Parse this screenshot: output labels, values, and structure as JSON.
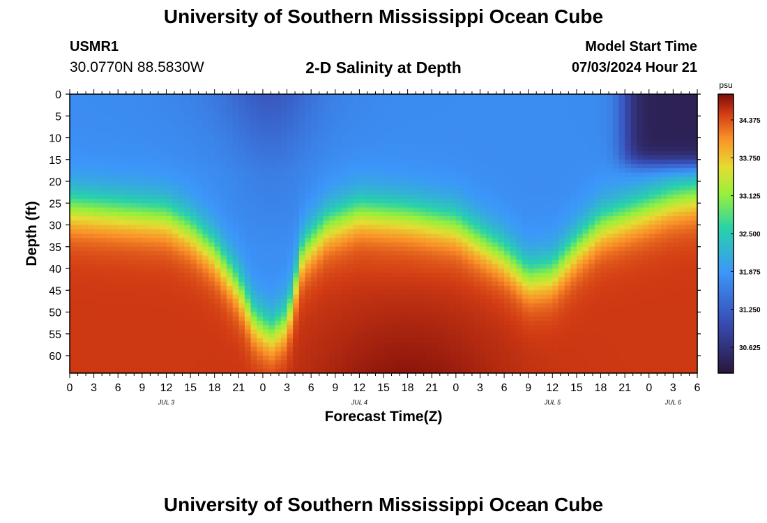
{
  "header": {
    "title": "University of Southern Mississippi Ocean Cube",
    "station_id": "USMR1",
    "coords": "30.0770N  88.5830W",
    "subtitle": "2-D Salinity at Depth",
    "model_label": "Model Start Time",
    "model_value": "07/03/2024 Hour 21"
  },
  "footer": {
    "title": "University of Southern Mississippi Ocean Cube"
  },
  "chart_data": {
    "type": "heatmap",
    "title": "2-D Salinity at Depth",
    "xlabel": "Forecast Time(Z)",
    "ylabel": "Depth (ft)",
    "x_hours_range": [
      0,
      78
    ],
    "x_tick_step_hours": 3,
    "x_tick_labels": [
      "0",
      "3",
      "6",
      "9",
      "12",
      "15",
      "18",
      "21",
      "0",
      "3",
      "6",
      "9",
      "12",
      "15",
      "18",
      "21",
      "0",
      "3",
      "6",
      "9",
      "12",
      "15",
      "18",
      "21",
      "0",
      "3",
      "6"
    ],
    "date_labels": [
      {
        "label": "JUL 3",
        "hour": 12
      },
      {
        "label": "JUL 4",
        "hour": 36
      },
      {
        "label": "JUL 5",
        "hour": 60
      },
      {
        "label": "JUL 6",
        "hour": 75
      }
    ],
    "y_range": [
      0,
      64
    ],
    "y_ticks": [
      0,
      5,
      10,
      15,
      20,
      25,
      30,
      35,
      40,
      45,
      50,
      55,
      60
    ],
    "colorbar": {
      "unit": "psu",
      "min": 30.2,
      "max": 34.8,
      "ticks": [
        "34.375",
        "33.750",
        "33.125",
        "32.500",
        "31.875",
        "31.250",
        "30.625"
      ]
    },
    "upper_layer_salinity": 31.75,
    "lower_layer_salinity": 34.5,
    "halocline_depth_ft": [
      {
        "hour": 0,
        "depth": 26
      },
      {
        "hour": 6,
        "depth": 27
      },
      {
        "hour": 12,
        "depth": 28
      },
      {
        "hour": 15,
        "depth": 31
      },
      {
        "hour": 18,
        "depth": 36
      },
      {
        "hour": 21,
        "depth": 44
      },
      {
        "hour": 23,
        "depth": 52
      },
      {
        "hour": 25,
        "depth": 55
      },
      {
        "hour": 27,
        "depth": 52
      },
      {
        "hour": 29,
        "depth": 36
      },
      {
        "hour": 32,
        "depth": 30
      },
      {
        "hour": 36,
        "depth": 27
      },
      {
        "hour": 42,
        "depth": 28
      },
      {
        "hour": 48,
        "depth": 30
      },
      {
        "hour": 54,
        "depth": 37
      },
      {
        "hour": 57,
        "depth": 42
      },
      {
        "hour": 60,
        "depth": 41
      },
      {
        "hour": 63,
        "depth": 35
      },
      {
        "hour": 66,
        "depth": 30
      },
      {
        "hour": 69,
        "depth": 28
      },
      {
        "hour": 72,
        "depth": 26
      },
      {
        "hour": 75,
        "depth": 24
      },
      {
        "hour": 78,
        "depth": 23
      }
    ],
    "lowest_surface_salinity_region": {
      "hours": [
        69,
        78
      ],
      "depths": [
        0,
        16
      ],
      "salinity": 30.3
    }
  }
}
